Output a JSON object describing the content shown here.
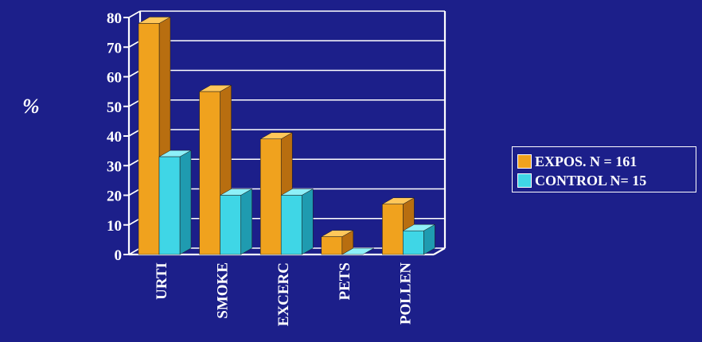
{
  "chart_data": {
    "type": "bar",
    "ylabel": "%",
    "ylim": [
      0,
      80
    ],
    "yticks": [
      "0",
      "10",
      "20",
      "30",
      "40",
      "50",
      "60",
      "70",
      "80"
    ],
    "categories": [
      "URTI",
      "SMOKE",
      "EXCERC",
      "PETS",
      "POLLEN"
    ],
    "series": [
      {
        "name": "EXPOS. N = 161",
        "values": [
          78,
          55,
          39,
          6,
          17
        ]
      },
      {
        "name": "CONTROL N= 15",
        "values": [
          33,
          20,
          20,
          0,
          8
        ]
      }
    ],
    "grid": true,
    "legend_position": "right",
    "colors": {
      "background": "#1c1f8a",
      "series": [
        "#f0a21e",
        "#3fd6e6"
      ],
      "series_side": [
        "#b86e10",
        "#1f9bb0"
      ],
      "series_top": [
        "#ffc75a",
        "#8ef0f8"
      ],
      "axis": "#ffffff"
    }
  }
}
